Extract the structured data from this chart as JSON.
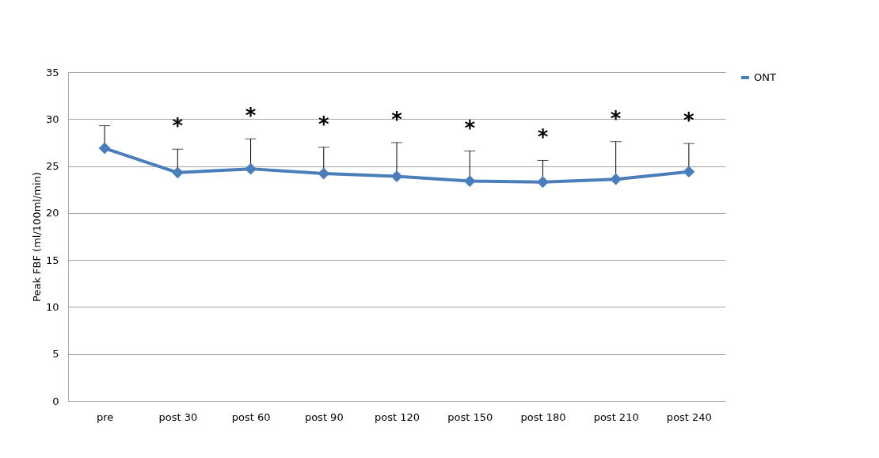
{
  "chart_data": {
    "type": "line",
    "ylabel": "Peak FBF (ml/100ml/min)",
    "categories": [
      "pre",
      "post 30",
      "post 60",
      "post 90",
      "post 120",
      "post 150",
      "post 180",
      "post 210",
      "post 240"
    ],
    "series": [
      {
        "name": "ONT",
        "color": "#4a7ebb",
        "values": [
          26.9,
          24.3,
          24.7,
          24.2,
          23.9,
          23.4,
          23.3,
          23.6,
          24.4
        ],
        "errors": [
          [
            26.9,
            29.3
          ],
          [
            24.3,
            26.8
          ],
          [
            24.7,
            27.9
          ],
          [
            24.2,
            27.0
          ],
          [
            23.9,
            27.5
          ],
          [
            23.4,
            26.6
          ],
          [
            23.3,
            25.6
          ],
          [
            23.6,
            27.6
          ],
          [
            24.4,
            27.4
          ]
        ]
      }
    ],
    "annotations": [
      "*",
      "*",
      "*",
      "*",
      "*",
      "*",
      "*",
      "*"
    ],
    "ylim": [
      0,
      35
    ],
    "yticks": [
      0,
      5,
      10,
      15,
      20,
      25,
      30,
      35
    ],
    "grid": "y",
    "legend": "right",
    "marker": "diamond",
    "line_style": "solid"
  }
}
